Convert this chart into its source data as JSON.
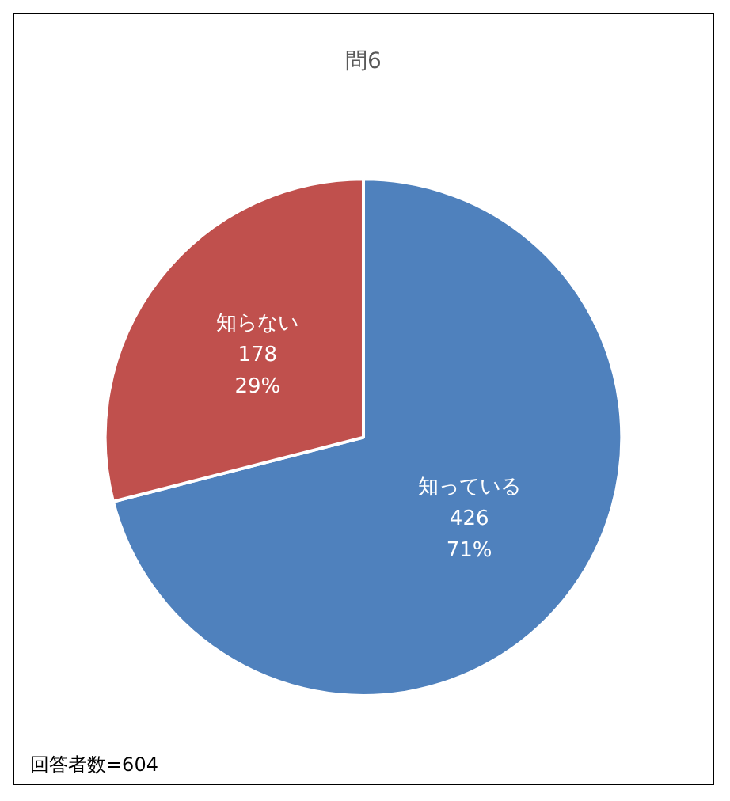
{
  "chart_data": {
    "type": "pie",
    "title": "問6",
    "categories": [
      "知っている",
      "知らない"
    ],
    "values": [
      71,
      29
    ],
    "colors": [
      "#4f81bd",
      "#c0504d"
    ],
    "value_labels": [
      "426\n71%",
      "178\n29%"
    ],
    "annotations": [
      "回答者数=604"
    ]
  }
}
